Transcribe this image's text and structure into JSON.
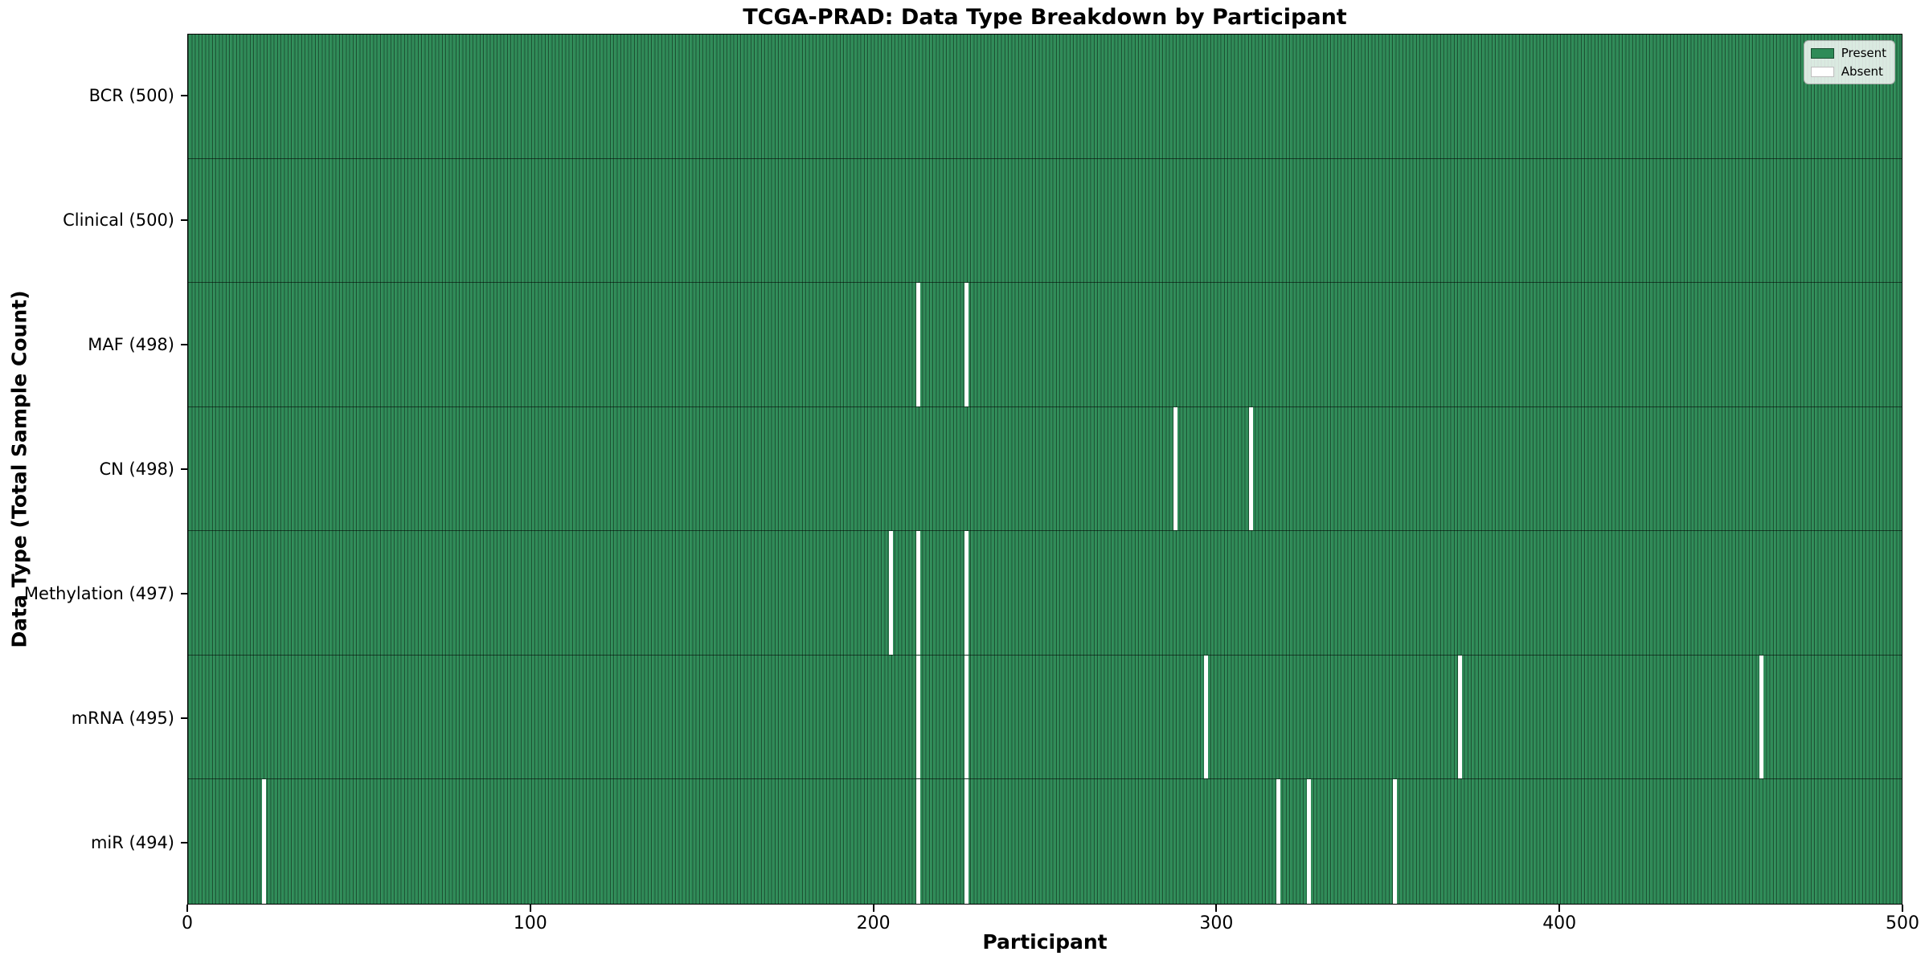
{
  "chart_data": {
    "type": "heatmap",
    "title": "TCGA-PRAD: Data Type Breakdown by Participant",
    "xlabel": "Participant",
    "ylabel": "Data Type (Total Sample Count)",
    "x_min": 0,
    "x_max": 500,
    "x_ticks": [
      0,
      100,
      200,
      300,
      400,
      500
    ],
    "grid": "off",
    "present_color": "#2e8b57",
    "absent_color": "#ffffff",
    "legend": {
      "position": "upper right",
      "items": [
        {
          "label": "Present",
          "color": "#2e8b57"
        },
        {
          "label": "Absent",
          "color": "#ffffff"
        }
      ]
    },
    "rows": [
      {
        "label": "BCR (500)",
        "data_type": "BCR",
        "total": 500,
        "absent_participants": []
      },
      {
        "label": "Clinical (500)",
        "data_type": "Clinical",
        "total": 500,
        "absent_participants": []
      },
      {
        "label": "MAF (498)",
        "data_type": "MAF",
        "total": 498,
        "absent_participants": [
          213,
          227
        ]
      },
      {
        "label": "CN (498)",
        "data_type": "CN",
        "total": 498,
        "absent_participants": [
          288,
          310
        ]
      },
      {
        "label": "Methylation (497)",
        "data_type": "Methylation",
        "total": 497,
        "absent_participants": [
          205,
          213,
          227
        ]
      },
      {
        "label": "mRNA (495)",
        "data_type": "mRNA",
        "total": 495,
        "absent_participants": [
          213,
          227,
          297,
          371,
          459
        ]
      },
      {
        "label": "miR (494)",
        "data_type": "miR",
        "total": 494,
        "absent_participants": [
          22,
          213,
          227,
          318,
          327,
          352
        ]
      }
    ]
  }
}
